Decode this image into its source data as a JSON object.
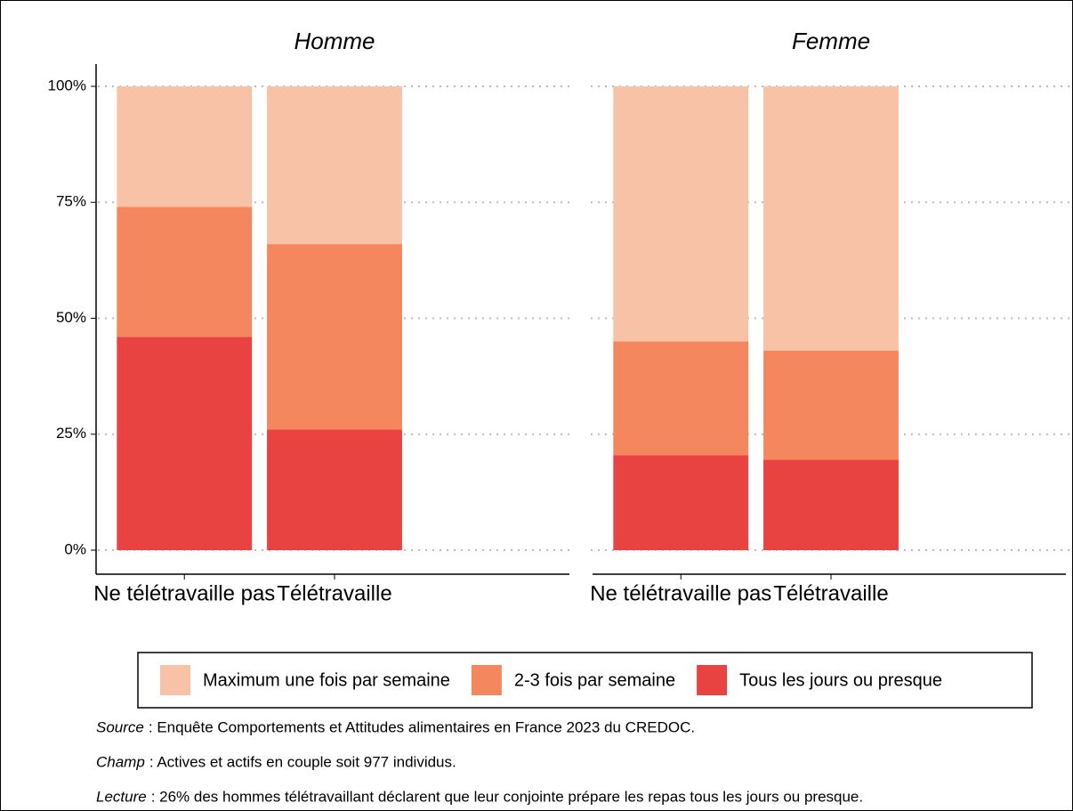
{
  "chart_data": {
    "type": "bar",
    "stacked": true,
    "facets": [
      {
        "title": "Homme",
        "categories": [
          "Ne télétravaille pas",
          "Télétravaille"
        ]
      },
      {
        "title": "Femme",
        "categories": [
          "Ne télétravaille pas",
          "Télétravaille"
        ]
      }
    ],
    "series": [
      {
        "name": "Tous les jours ou presque",
        "color": "#e84341",
        "values": [
          [
            46,
            26
          ],
          [
            20.5,
            19.5
          ]
        ]
      },
      {
        "name": "2-3 fois par semaine",
        "color": "#f4875e",
        "values": [
          [
            28,
            40
          ],
          [
            24.5,
            23.5
          ]
        ]
      },
      {
        "name": "Maximum une fois par semaine",
        "color": "#f7c2a5",
        "values": [
          [
            26,
            34
          ],
          [
            55,
            57
          ]
        ]
      }
    ],
    "legend_order": [
      2,
      1,
      0
    ],
    "ylim": [
      0,
      100
    ],
    "yticks": [
      {
        "value": 0,
        "label": "0%"
      },
      {
        "value": 25,
        "label": "25%"
      },
      {
        "value": 50,
        "label": "50%"
      },
      {
        "value": 75,
        "label": "75%"
      },
      {
        "value": 100,
        "label": "100%"
      }
    ],
    "grid": true,
    "notes": [
      {
        "label": "Source",
        "text": ": Enquête Comportements et Attitudes alimentaires en France 2023 du CREDOC."
      },
      {
        "label": "Champ",
        "text": ": Actives et actifs en couple soit 977 individus."
      },
      {
        "label": "Lecture",
        "text": ": 26% des hommes télétravaillant déclarent que leur conjointe prépare les repas tous les jours ou presque."
      }
    ]
  }
}
